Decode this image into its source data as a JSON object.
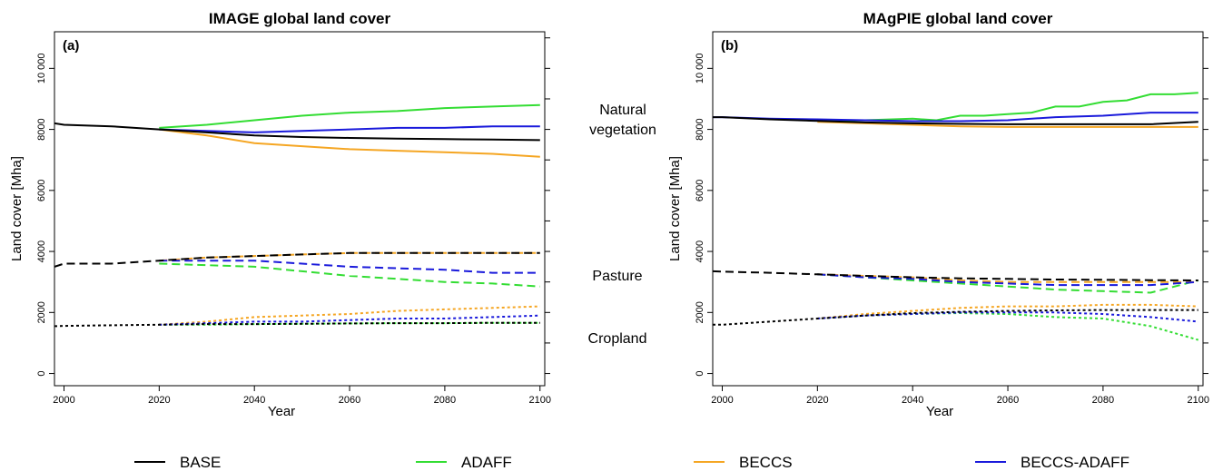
{
  "chart_data": [
    {
      "type": "line",
      "panel": "(a)",
      "title": "IMAGE global land cover",
      "xlabel": "Year",
      "ylabel": "Land cover [Mha]",
      "xlim": [
        1998,
        2101
      ],
      "ylim": [
        -400,
        11200
      ],
      "xticks": [
        "2000",
        "2020",
        "2040",
        "2060",
        "2080",
        "2100"
      ],
      "yticks": [
        "0",
        "2000",
        "4000",
        "6000",
        "8000",
        "10 000"
      ],
      "series": [
        {
          "scenario": "BASE",
          "category": "Natural vegetation",
          "x": [
            1998,
            2000,
            2010,
            2020,
            2030,
            2040,
            2050,
            2060,
            2070,
            2080,
            2090,
            2100
          ],
          "y": [
            8200,
            8150,
            8100,
            8000,
            7900,
            7800,
            7750,
            7720,
            7700,
            7680,
            7670,
            7650
          ]
        },
        {
          "scenario": "ADAFF",
          "category": "Natural vegetation",
          "x": [
            2020,
            2030,
            2040,
            2050,
            2060,
            2070,
            2080,
            2090,
            2100
          ],
          "y": [
            8050,
            8150,
            8300,
            8450,
            8550,
            8600,
            8700,
            8750,
            8800
          ]
        },
        {
          "scenario": "BECCS",
          "category": "Natural vegetation",
          "x": [
            2020,
            2030,
            2040,
            2050,
            2060,
            2070,
            2080,
            2090,
            2100
          ],
          "y": [
            8000,
            7800,
            7550,
            7450,
            7350,
            7300,
            7250,
            7200,
            7100
          ]
        },
        {
          "scenario": "BECCS-ADAFF",
          "category": "Natural vegetation",
          "x": [
            2020,
            2030,
            2040,
            2050,
            2060,
            2070,
            2080,
            2090,
            2100
          ],
          "y": [
            8000,
            7950,
            7900,
            7950,
            8000,
            8050,
            8050,
            8100,
            8100
          ]
        },
        {
          "scenario": "BASE",
          "category": "Pasture",
          "x": [
            1998,
            2000,
            2010,
            2020,
            2030,
            2040,
            2050,
            2060,
            2070,
            2080,
            2090,
            2100
          ],
          "y": [
            3500,
            3600,
            3600,
            3700,
            3800,
            3850,
            3900,
            3950,
            3950,
            3950,
            3950,
            3950
          ]
        },
        {
          "scenario": "ADAFF",
          "category": "Pasture",
          "x": [
            2020,
            2030,
            2040,
            2050,
            2060,
            2070,
            2080,
            2090,
            2100
          ],
          "y": [
            3600,
            3550,
            3500,
            3350,
            3200,
            3100,
            3000,
            2950,
            2850
          ]
        },
        {
          "scenario": "BECCS",
          "category": "Pasture",
          "x": [
            2020,
            2030,
            2040,
            2050,
            2060,
            2070,
            2080,
            2090,
            2100
          ],
          "y": [
            3700,
            3800,
            3850,
            3900,
            3950,
            3950,
            3950,
            3950,
            3950
          ]
        },
        {
          "scenario": "BECCS-ADAFF",
          "category": "Pasture",
          "x": [
            2020,
            2030,
            2040,
            2050,
            2060,
            2070,
            2080,
            2090,
            2100
          ],
          "y": [
            3700,
            3700,
            3700,
            3600,
            3500,
            3450,
            3400,
            3300,
            3300
          ]
        },
        {
          "scenario": "BASE",
          "category": "Cropland",
          "x": [
            1998,
            2000,
            2010,
            2020,
            2030,
            2040,
            2050,
            2060,
            2070,
            2080,
            2090,
            2100
          ],
          "y": [
            1550,
            1560,
            1580,
            1600,
            1620,
            1620,
            1630,
            1640,
            1650,
            1650,
            1660,
            1660
          ]
        },
        {
          "scenario": "ADAFF",
          "category": "Cropland",
          "x": [
            2020,
            2030,
            2040,
            2050,
            2060,
            2070,
            2080,
            2090,
            2100
          ],
          "y": [
            1600,
            1600,
            1620,
            1630,
            1640,
            1650,
            1650,
            1660,
            1660
          ]
        },
        {
          "scenario": "BECCS",
          "category": "Cropland",
          "x": [
            2020,
            2030,
            2040,
            2050,
            2060,
            2070,
            2080,
            2090,
            2100
          ],
          "y": [
            1600,
            1700,
            1850,
            1900,
            1950,
            2050,
            2100,
            2150,
            2200
          ]
        },
        {
          "scenario": "BECCS-ADAFF",
          "category": "Cropland",
          "x": [
            2020,
            2030,
            2040,
            2050,
            2060,
            2070,
            2080,
            2090,
            2100
          ],
          "y": [
            1600,
            1650,
            1700,
            1700,
            1750,
            1800,
            1800,
            1850,
            1900
          ]
        }
      ]
    },
    {
      "type": "line",
      "panel": "(b)",
      "title": "MAgPIE global land cover",
      "xlabel": "Year",
      "ylabel": "Land cover [Mha]",
      "xlim": [
        1998,
        2101
      ],
      "ylim": [
        -400,
        11200
      ],
      "xticks": [
        "2000",
        "2020",
        "2040",
        "2060",
        "2080",
        "2100"
      ],
      "yticks": [
        "0",
        "2000",
        "4000",
        "6000",
        "8000",
        "10 000"
      ],
      "series": [
        {
          "scenario": "BASE",
          "category": "Natural vegetation",
          "x": [
            1998,
            2000,
            2010,
            2020,
            2030,
            2040,
            2050,
            2060,
            2070,
            2080,
            2090,
            2100
          ],
          "y": [
            8400,
            8400,
            8330,
            8280,
            8230,
            8200,
            8180,
            8170,
            8170,
            8170,
            8170,
            8250
          ]
        },
        {
          "scenario": "ADAFF",
          "category": "Natural vegetation",
          "x": [
            2020,
            2030,
            2040,
            2045,
            2050,
            2055,
            2060,
            2065,
            2070,
            2075,
            2080,
            2085,
            2090,
            2095,
            2100
          ],
          "y": [
            8300,
            8300,
            8350,
            8300,
            8450,
            8450,
            8500,
            8550,
            8750,
            8750,
            8900,
            8950,
            9150,
            9150,
            9200
          ]
        },
        {
          "scenario": "BECCS",
          "category": "Natural vegetation",
          "x": [
            2020,
            2030,
            2040,
            2050,
            2060,
            2070,
            2080,
            2090,
            2100
          ],
          "y": [
            8250,
            8200,
            8150,
            8100,
            8080,
            8080,
            8080,
            8080,
            8080
          ]
        },
        {
          "scenario": "BECCS-ADAFF",
          "category": "Natural vegetation",
          "x": [
            1998,
            2000,
            2010,
            2020,
            2030,
            2040,
            2050,
            2060,
            2070,
            2080,
            2090,
            2100
          ],
          "y": [
            8400,
            8400,
            8350,
            8330,
            8300,
            8270,
            8270,
            8300,
            8400,
            8450,
            8550,
            8550
          ]
        },
        {
          "scenario": "BASE",
          "category": "Pasture",
          "x": [
            1998,
            2000,
            2010,
            2020,
            2030,
            2040,
            2050,
            2060,
            2070,
            2080,
            2090,
            2100
          ],
          "y": [
            3350,
            3340,
            3300,
            3250,
            3200,
            3150,
            3120,
            3100,
            3080,
            3070,
            3060,
            3050
          ]
        },
        {
          "scenario": "ADAFF",
          "category": "Pasture",
          "x": [
            2020,
            2030,
            2040,
            2050,
            2060,
            2070,
            2080,
            2090,
            2100
          ],
          "y": [
            3250,
            3150,
            3050,
            2950,
            2850,
            2750,
            2700,
            2650,
            3050
          ]
        },
        {
          "scenario": "BECCS",
          "category": "Pasture",
          "x": [
            2020,
            2030,
            2040,
            2050,
            2060,
            2070,
            2080,
            2090,
            2100
          ],
          "y": [
            3250,
            3200,
            3150,
            3050,
            3000,
            3000,
            3000,
            3000,
            3000
          ]
        },
        {
          "scenario": "BECCS-ADAFF",
          "category": "Pasture",
          "x": [
            2020,
            2030,
            2040,
            2050,
            2060,
            2070,
            2080,
            2090,
            2100
          ],
          "y": [
            3250,
            3150,
            3100,
            3000,
            2950,
            2900,
            2900,
            2900,
            3000
          ]
        },
        {
          "scenario": "BASE",
          "category": "Cropland",
          "x": [
            1998,
            2000,
            2010,
            2020,
            2030,
            2040,
            2050,
            2060,
            2070,
            2080,
            2090,
            2100
          ],
          "y": [
            1600,
            1600,
            1700,
            1800,
            1900,
            1980,
            2020,
            2050,
            2070,
            2080,
            2080,
            2080
          ]
        },
        {
          "scenario": "ADAFF",
          "category": "Cropland",
          "x": [
            2020,
            2030,
            2040,
            2050,
            2060,
            2070,
            2080,
            2090,
            2100
          ],
          "y": [
            1800,
            1900,
            1950,
            1980,
            1950,
            1850,
            1800,
            1550,
            1100
          ]
        },
        {
          "scenario": "BECCS",
          "category": "Cropland",
          "x": [
            2020,
            2030,
            2040,
            2050,
            2060,
            2070,
            2080,
            2090,
            2100
          ],
          "y": [
            1800,
            1950,
            2050,
            2150,
            2200,
            2200,
            2250,
            2250,
            2200
          ]
        },
        {
          "scenario": "BECCS-ADAFF",
          "category": "Cropland",
          "x": [
            2020,
            2030,
            2040,
            2050,
            2060,
            2070,
            2080,
            2090,
            2100
          ],
          "y": [
            1800,
            1900,
            1950,
            2000,
            2000,
            2000,
            1950,
            1850,
            1700
          ]
        }
      ]
    }
  ],
  "category_labels": {
    "natural": [
      "Natural",
      "vegetation"
    ],
    "pasture": "Pasture",
    "cropland": "Cropland"
  },
  "legend": [
    {
      "name": "BASE",
      "color": "#000000"
    },
    {
      "name": "ADAFF",
      "color": "#33dd33"
    },
    {
      "name": "BECCS",
      "color": "#f5a623"
    },
    {
      "name": "BECCS-ADAFF",
      "color": "#1a1adb"
    }
  ],
  "line_styles": {
    "Natural vegetation": "solid",
    "Pasture": "dashed",
    "Cropland": "dotted"
  }
}
